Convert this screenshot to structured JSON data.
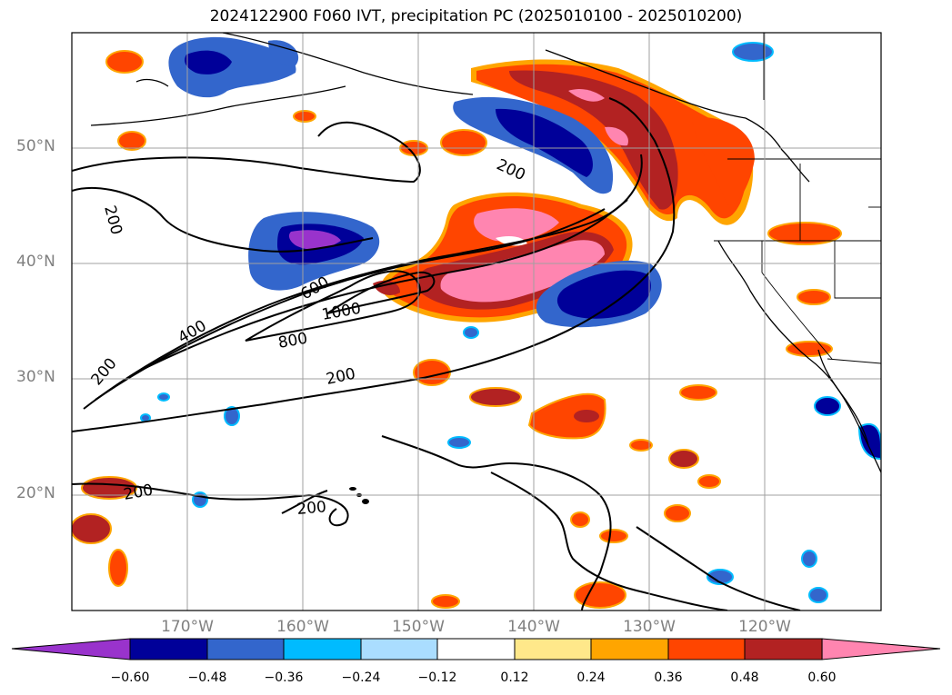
{
  "title": "2024122900 F060 IVT, precipitation PC (2025010100 - 2025010200)",
  "map": {
    "region": "North Pacific / West coast of North America",
    "lon_range": [
      -180,
      -110
    ],
    "lat_range": [
      10,
      60
    ],
    "lat_labels": [
      "50°N",
      "40°N",
      "30°N",
      "20°N"
    ],
    "lon_labels": [
      "170°W",
      "160°W",
      "150°W",
      "140°W",
      "130°W",
      "120°W"
    ],
    "contour_labels": [
      "200",
      "200",
      "600",
      "1000",
      "400",
      "800",
      "200",
      "200",
      "200",
      "200"
    ]
  },
  "colorbar": {
    "colors": [
      "#9933cc",
      "#000099",
      "#3366cc",
      "#00bbff",
      "#aaddff",
      "#ffffff",
      "#ffe88a",
      "#ffa500",
      "#ff4500",
      "#b22222",
      "#ff85b0"
    ],
    "labels": [
      "−0.60",
      "−0.48",
      "−0.36",
      "−0.24",
      "−0.12",
      "0.12",
      "0.24",
      "0.36",
      "0.48",
      "0.60"
    ]
  }
}
